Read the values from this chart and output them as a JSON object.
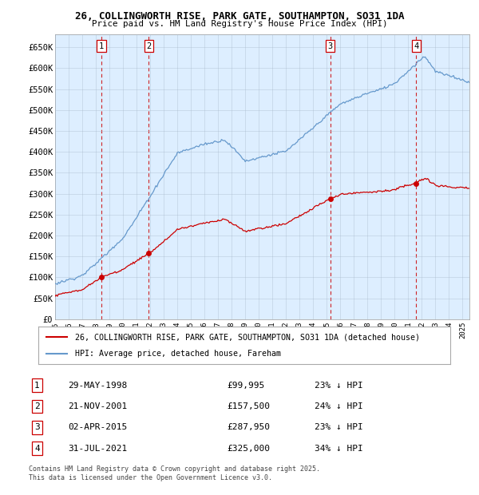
{
  "title_line1": "26, COLLINGWORTH RISE, PARK GATE, SOUTHAMPTON, SO31 1DA",
  "title_line2": "Price paid vs. HM Land Registry's House Price Index (HPI)",
  "ylabel_ticks": [
    "£0",
    "£50K",
    "£100K",
    "£150K",
    "£200K",
    "£250K",
    "£300K",
    "£350K",
    "£400K",
    "£450K",
    "£500K",
    "£550K",
    "£600K",
    "£650K"
  ],
  "ytick_values": [
    0,
    50000,
    100000,
    150000,
    200000,
    250000,
    300000,
    350000,
    400000,
    450000,
    500000,
    550000,
    600000,
    650000
  ],
  "hpi_color": "#6699cc",
  "price_color": "#cc0000",
  "vline_color": "#cc0000",
  "background_color": "#ffffff",
  "plot_bg_color": "#ddeeff",
  "grid_color": "#aabbcc",
  "transactions": [
    {
      "label": 1,
      "date_x": 1998.41,
      "price": 99995,
      "text": "29-MAY-1998",
      "price_text": "£99,995",
      "pct_text": "23% ↓ HPI"
    },
    {
      "label": 2,
      "date_x": 2001.89,
      "price": 157500,
      "text": "21-NOV-2001",
      "price_text": "£157,500",
      "pct_text": "24% ↓ HPI"
    },
    {
      "label": 3,
      "date_x": 2015.25,
      "price": 287950,
      "text": "02-APR-2015",
      "price_text": "£287,950",
      "pct_text": "23% ↓ HPI"
    },
    {
      "label": 4,
      "date_x": 2021.58,
      "price": 325000,
      "text": "31-JUL-2021",
      "price_text": "£325,000",
      "pct_text": "34% ↓ HPI"
    }
  ],
  "legend_label1": "26, COLLINGWORTH RISE, PARK GATE, SOUTHAMPTON, SO31 1DA (detached house)",
  "legend_label2": "HPI: Average price, detached house, Fareham",
  "footer1": "Contains HM Land Registry data © Crown copyright and database right 2025.",
  "footer2": "This data is licensed under the Open Government Licence v3.0.",
  "xmin": 1995,
  "xmax": 2025.5,
  "ymin": 0,
  "ymax": 680000
}
